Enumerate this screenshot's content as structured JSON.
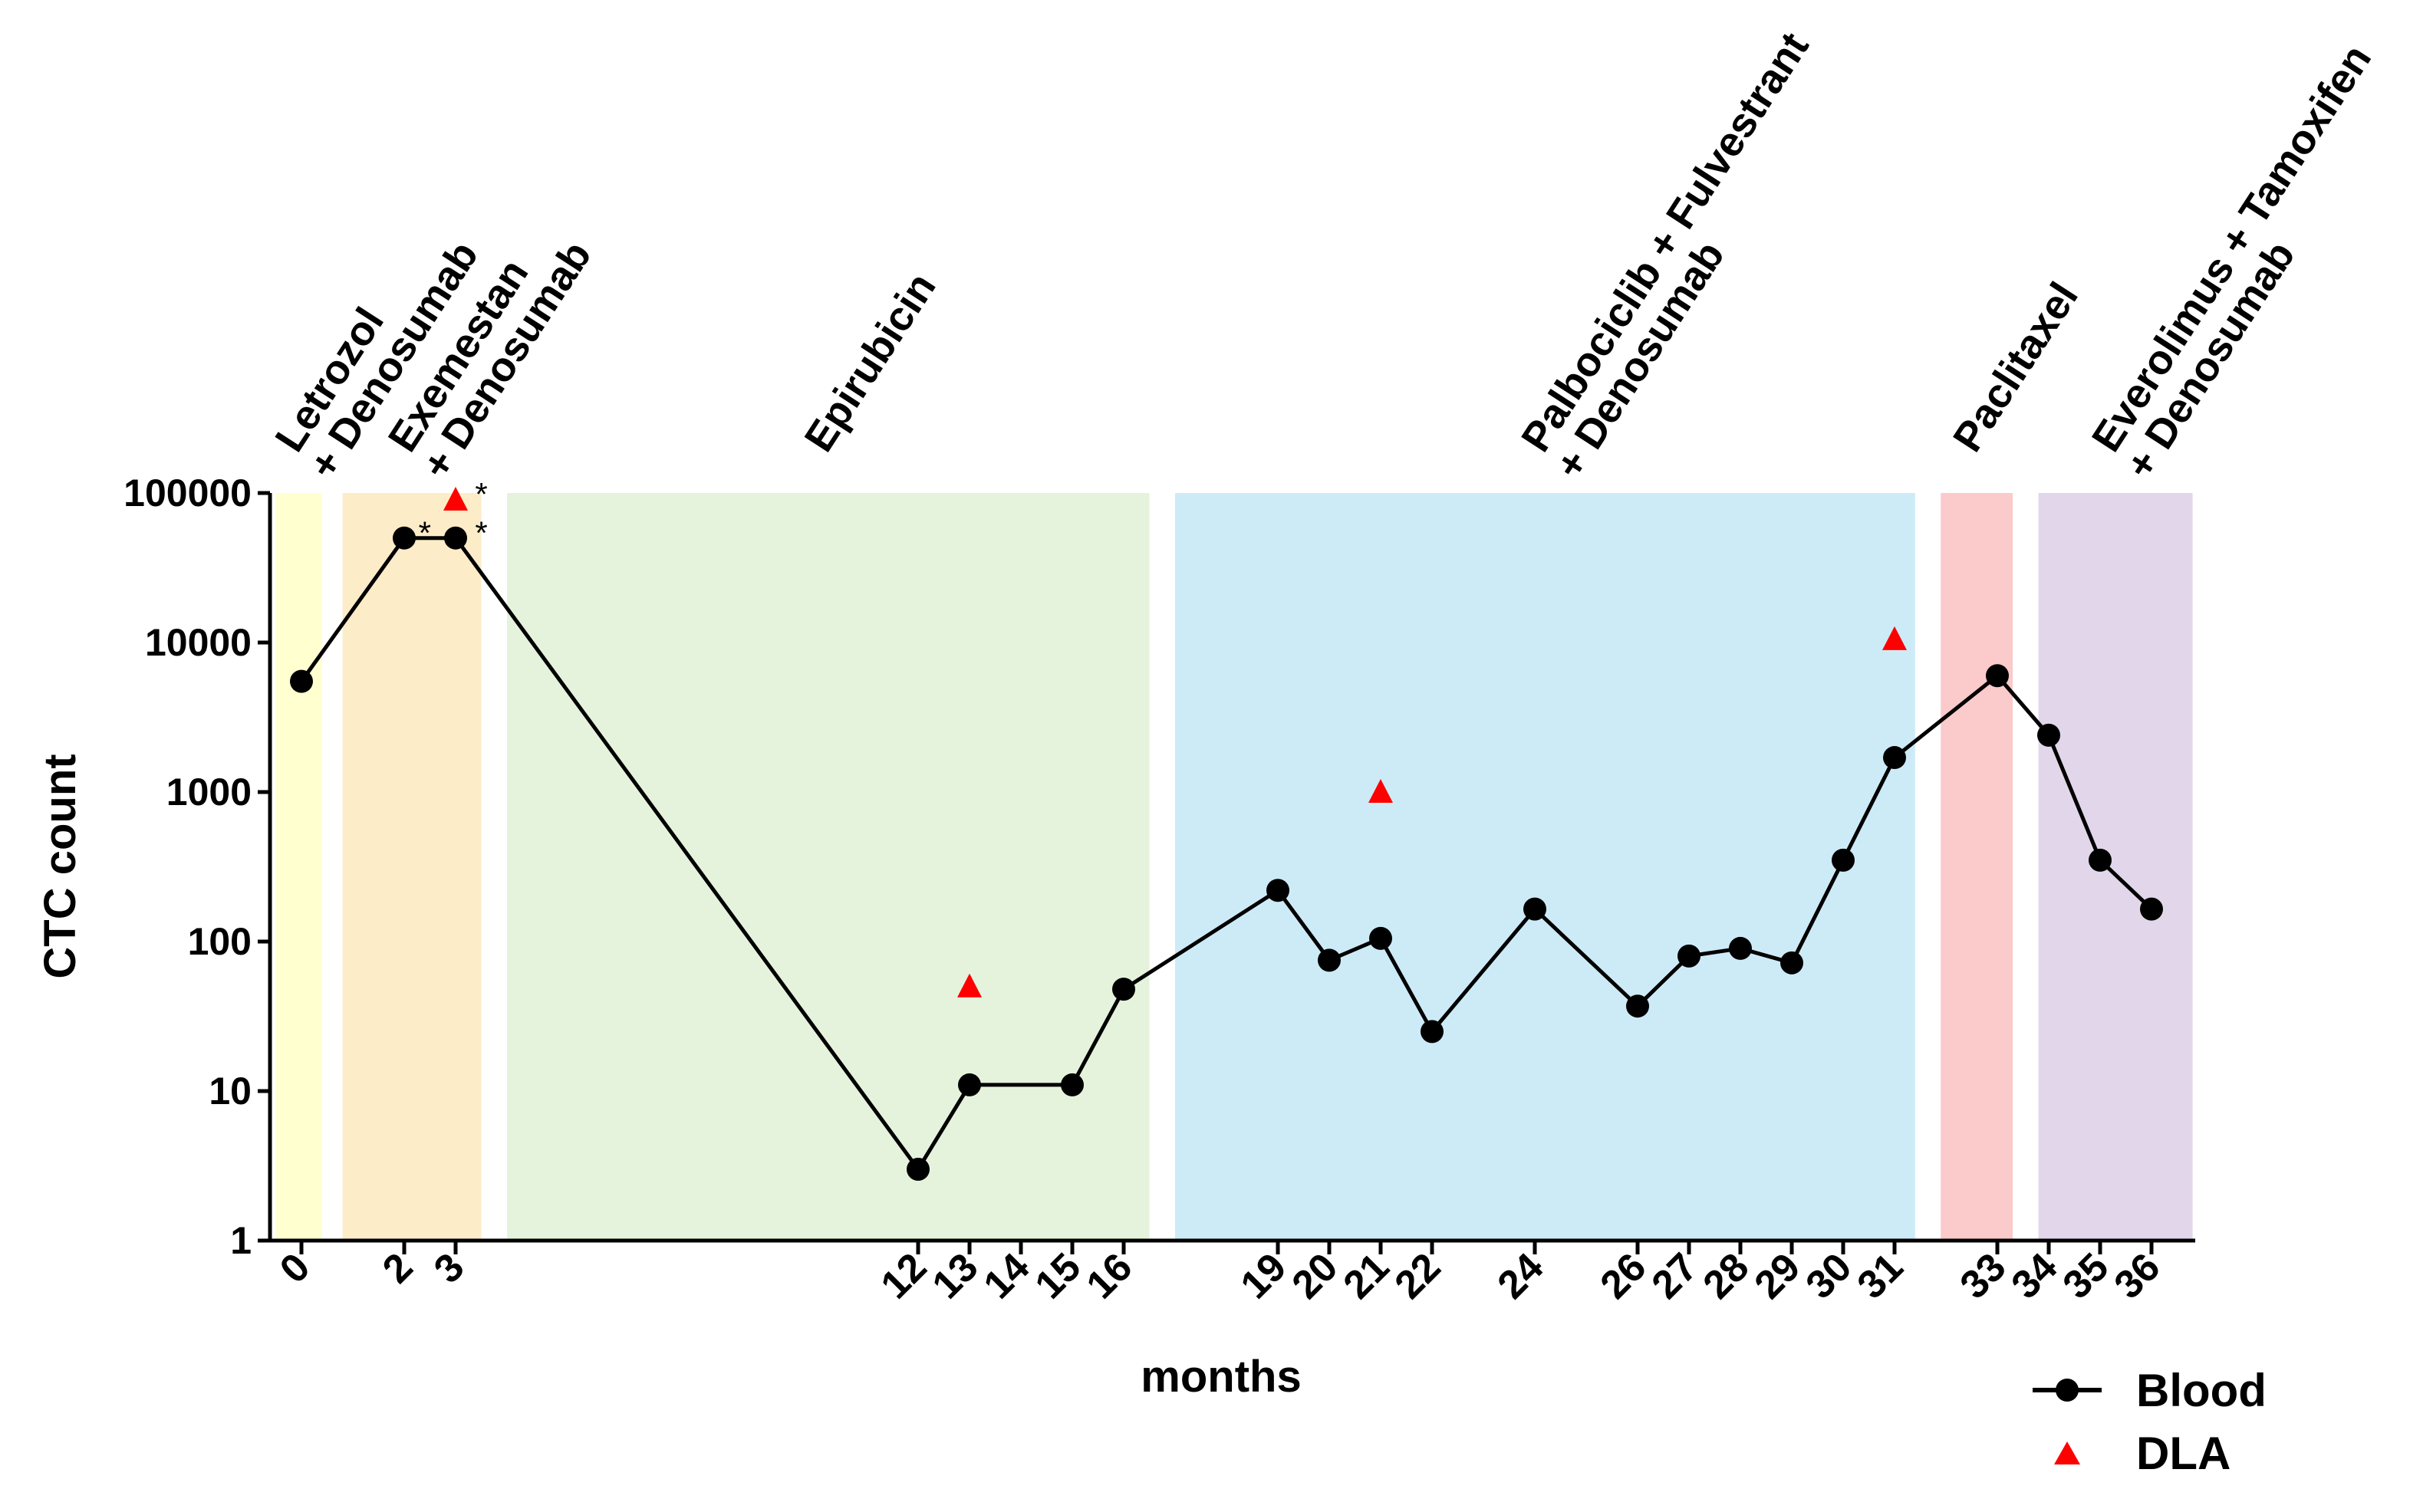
{
  "chart_data": {
    "type": "line",
    "title": "",
    "xlabel": "months",
    "ylabel": "CTC count",
    "yscale": "log",
    "ylim": [
      1,
      100000
    ],
    "y_ticks": [
      "1",
      "10",
      "100",
      "1000",
      "10000",
      "100000"
    ],
    "x_ticks": [
      "0",
      "2",
      "3",
      "12",
      "13",
      "14",
      "15",
      "16",
      "19",
      "20",
      "21",
      "22",
      "24",
      "26",
      "27",
      "28",
      "29",
      "30",
      "31",
      "33",
      "34",
      "35",
      "36"
    ],
    "treatments": [
      {
        "line1": "Letrozol",
        "line2": "+ Denosumab",
        "from": -0.5,
        "to": 0.4,
        "color": "#ffffd0"
      },
      {
        "line1": "Exemestan",
        "line2": "+ Denosumab",
        "from": 0.8,
        "to": 3.5,
        "color": "#fdecc8"
      },
      {
        "line1": "Epirubicin",
        "line2": "",
        "from": 4.0,
        "to": 16.5,
        "color": "#e6f3dc"
      },
      {
        "line1": "Palbociclib + Fulvestrant",
        "line2": "+ Denosumab",
        "from": 17.0,
        "to": 31.4,
        "color": "#cdebf7"
      },
      {
        "line1": "Paclitaxel",
        "line2": "",
        "from": 31.9,
        "to": 33.3,
        "color": "#fbcaca"
      },
      {
        "line1": "Everolimus + Tamoxifen",
        "line2": "+ Denosumab",
        "from": 33.8,
        "to": 36.8,
        "color": "#e2d6ea"
      }
    ],
    "series": [
      {
        "name": "Blood",
        "marker": "circle",
        "color": "#000000",
        "x": [
          0,
          2,
          3,
          12,
          13,
          15,
          16,
          19,
          20,
          21,
          22,
          24,
          26,
          27,
          28,
          29,
          30,
          31,
          33,
          34,
          35,
          36
        ],
        "y": [
          5500,
          50000,
          50000,
          3,
          11,
          11,
          48,
          220,
          75,
          105,
          25,
          165,
          37,
          80,
          90,
          72,
          350,
          1700,
          6000,
          2400,
          350,
          165
        ]
      },
      {
        "name": "DLA",
        "marker": "triangle",
        "color": "#ff0000",
        "x": [
          3,
          13,
          21,
          31
        ],
        "y": [
          90000,
          50,
          1000,
          10500
        ]
      }
    ],
    "annotations": [
      {
        "text": "*",
        "x": 2.4,
        "y": 55000
      },
      {
        "text": "*",
        "x": 3.5,
        "y": 100000
      },
      {
        "text": "*",
        "x": 3.5,
        "y": 55000
      }
    ],
    "legend": [
      "Blood",
      "DLA"
    ],
    "legend_position": "bottom-right"
  }
}
